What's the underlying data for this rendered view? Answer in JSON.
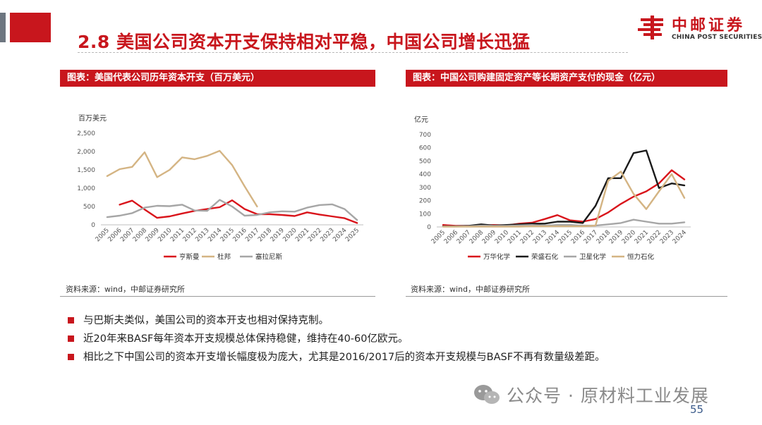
{
  "slide": {
    "title": "2.8 美国公司资本开支保持相对平稳，中国公司增长迅猛",
    "page_number": "55"
  },
  "logo": {
    "cn": "中邮证券",
    "en": "CHINA POST SECURITIES"
  },
  "charts": [
    {
      "header": "图表：美国代表公司历年资本开支（百万美元）",
      "source": "资料来源：wind，中邮证券研究所"
    },
    {
      "header": "图表：中国公司购建固定资产等长期资产支付的现金（亿元）",
      "source": "资料来源：wind，中邮证券研究所"
    }
  ],
  "bullets": [
    "与巴斯夫类似，美国公司的资本开支也相对保持克制。",
    "近20年来BASF每年资本开支规模总体保持稳健，维持在40-60亿欧元。",
    "相比之下中国公司的资本开支增长幅度极为庞大，尤其是2016/2017后的资本开支规模与BASF不再有数量级差距。"
  ],
  "watermark": {
    "text": "公众号 · 原材料工业发展",
    "icon": "wechat-icon"
  },
  "colors": {
    "accent": "#c8161d",
    "grey": "#a6a6a6",
    "tan": "#d4b483",
    "black": "#1a1a1a"
  },
  "chart_data": [
    {
      "type": "line",
      "ylabel": "百万美元",
      "ylim": [
        0,
        2500
      ],
      "yticks": [
        0,
        500,
        1000,
        1500,
        2000,
        2500
      ],
      "ytick_labels": [
        "0",
        "500",
        "1,000",
        "1,500",
        "2,000",
        "2,500"
      ],
      "x": [
        "2005",
        "2006",
        "2007",
        "2008",
        "2009",
        "2010",
        "2011",
        "2012",
        "2013",
        "2014",
        "2015",
        "2016",
        "2017",
        "2018",
        "2019",
        "2020",
        "2021",
        "2022",
        "2023",
        "2024",
        "2025"
      ],
      "legend_position": "bottom",
      "grid": false,
      "series": [
        {
          "name": "亨斯曼",
          "color": "#d9141b",
          "values": [
            null,
            550,
            660,
            420,
            190,
            230,
            310,
            380,
            430,
            480,
            670,
            430,
            290,
            290,
            270,
            240,
            340,
            280,
            230,
            180,
            50
          ]
        },
        {
          "name": "杜邦",
          "color": "#d4b483",
          "values": [
            1330,
            1520,
            1580,
            1980,
            1300,
            1500,
            1840,
            1790,
            1880,
            2020,
            1630,
            1050,
            500,
            null,
            null,
            null,
            null,
            null,
            null,
            null,
            null
          ]
        },
        {
          "name": "塞拉尼斯",
          "color": "#a6a6a6",
          "values": [
            210,
            250,
            320,
            470,
            520,
            510,
            550,
            390,
            380,
            680,
            500,
            250,
            270,
            340,
            370,
            360,
            470,
            540,
            560,
            430,
            130
          ]
        }
      ]
    },
    {
      "type": "line",
      "ylabel": "亿元",
      "ylim": [
        0,
        700
      ],
      "yticks": [
        0,
        100,
        200,
        300,
        400,
        500,
        600,
        700
      ],
      "ytick_labels": [
        "0",
        "100",
        "200",
        "300",
        "400",
        "500",
        "600",
        "700"
      ],
      "x": [
        "2005",
        "2006",
        "2007",
        "2008",
        "2009",
        "2010",
        "2011",
        "2012",
        "2013",
        "2014",
        "2015",
        "2016",
        "2017",
        "2018",
        "2019",
        "2020",
        "2021",
        "2022",
        "2023",
        "2024"
      ],
      "legend_position": "bottom",
      "grid": false,
      "series": [
        {
          "name": "万华化学",
          "color": "#d9141b",
          "values": [
            15,
            8,
            8,
            12,
            15,
            12,
            25,
            32,
            60,
            90,
            50,
            40,
            60,
            110,
            175,
            230,
            270,
            330,
            430,
            360
          ]
        },
        {
          "name": "荣盛石化",
          "color": "#1a1a1a",
          "values": [
            5,
            5,
            8,
            20,
            10,
            15,
            20,
            25,
            25,
            40,
            40,
            30,
            160,
            370,
            370,
            560,
            580,
            295,
            330,
            315
          ]
        },
        {
          "name": "卫星化学",
          "color": "#a6a6a6",
          "values": [
            3,
            3,
            5,
            10,
            8,
            8,
            12,
            15,
            10,
            15,
            15,
            10,
            10,
            20,
            30,
            55,
            40,
            25,
            25,
            35
          ]
        },
        {
          "name": "恒力石化",
          "color": "#d4b483",
          "values": [
            2,
            2,
            2,
            2,
            2,
            2,
            2,
            5,
            5,
            5,
            5,
            5,
            10,
            350,
            420,
            250,
            135,
            270,
            400,
            220
          ]
        }
      ]
    }
  ]
}
